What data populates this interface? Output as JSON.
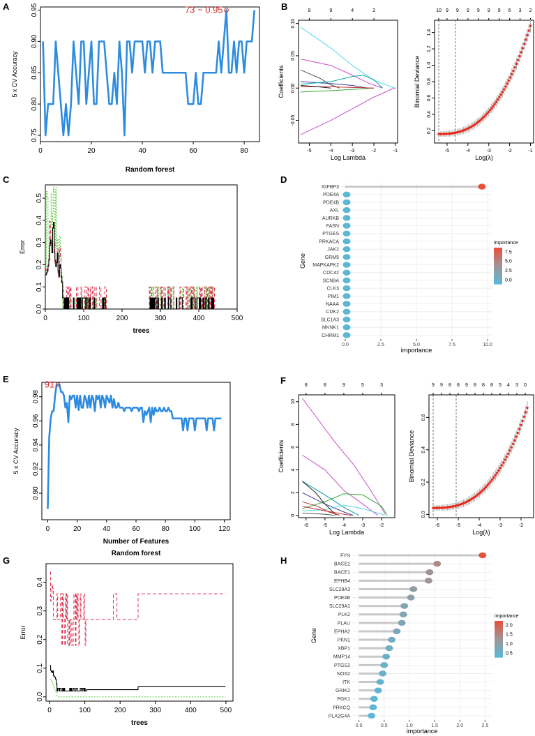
{
  "colors": {
    "rf_line": "#2e8ce0",
    "dev_point": "#e8291c",
    "ci": "#b0b0b0",
    "oob": "#000000",
    "class0": "#dc3250",
    "class1": "#55cc33",
    "lollipop_low": "#5bb7d8",
    "lollipop_high": "#e5513a",
    "grid": "#ebebeb"
  },
  "chart_data": [
    {
      "panel": "A",
      "type": "line",
      "xlabel": "",
      "ylabel": "5 x CV Accuracy",
      "title": "Random forest",
      "xlim": [
        0,
        86
      ],
      "ylim": [
        0.74,
        0.955
      ],
      "xticks": [
        0,
        20,
        40,
        60,
        80
      ],
      "yticks": [
        0.75,
        0.8,
        0.85,
        0.9,
        0.95
      ],
      "ytick_labels": [
        "0.75",
        "0.80",
        "0.85",
        "0.90",
        "0.95"
      ],
      "annotation": "73 − 0.95",
      "annotation_point": [
        73,
        0.95
      ],
      "y": [
        0.9,
        0.75,
        0.8,
        0.8,
        0.8,
        0.9,
        0.85,
        0.8,
        0.75,
        0.8,
        0.75,
        0.8,
        0.9,
        0.85,
        0.8,
        0.9,
        0.9,
        0.8,
        0.85,
        0.9,
        0.8,
        0.8,
        0.9,
        0.9,
        0.9,
        0.85,
        0.8,
        0.8,
        0.85,
        0.8,
        0.9,
        0.85,
        0.75,
        0.9,
        0.9,
        0.85,
        0.9,
        0.9,
        0.9,
        0.9,
        0.85,
        0.9,
        0.9,
        0.85,
        0.9,
        0.9,
        0.9,
        0.85,
        0.85,
        0.85,
        0.85,
        0.85,
        0.85,
        0.85,
        0.85,
        0.85,
        0.85,
        0.8,
        0.8,
        0.8,
        0.85,
        0.8,
        0.8,
        0.85,
        0.85,
        0.85,
        0.85,
        0.85,
        0.85,
        0.9,
        0.85,
        0.9,
        0.95,
        0.85,
        0.85,
        0.9,
        0.85,
        0.9,
        0.9,
        0.85,
        0.9,
        0.9,
        0.9,
        0.95
      ]
    },
    {
      "panel": "B-left",
      "type": "line",
      "xlabel": "Log Lambda",
      "ylabel": "Coefficients",
      "xlim": [
        -5.5,
        -0.9
      ],
      "ylim": [
        -0.085,
        0.105
      ],
      "xticks": [
        -5,
        -4,
        -3,
        -2,
        -1
      ],
      "yticks": [
        -0.05,
        0,
        0.05,
        0.1
      ],
      "ytick_labels": [
        "-0.05",
        "0.00",
        "0.05",
        "0.10"
      ],
      "top_ticks": [
        -5,
        -4,
        -3,
        -2
      ],
      "top_labels": [
        "9",
        "9",
        "4",
        "2"
      ],
      "series": [
        {
          "color": "#58d6e8",
          "points": [
            [
              -5.4,
              0.094
            ],
            [
              -4,
              0.062
            ],
            [
              -3,
              0.035
            ],
            [
              -2,
              0.012
            ],
            [
              -1.2,
              0.002
            ],
            [
              -1,
              0
            ]
          ]
        },
        {
          "color": "#c850c8",
          "points": [
            [
              -5.4,
              -0.072
            ],
            [
              -4,
              -0.05
            ],
            [
              -3,
              -0.032
            ],
            [
              -2,
              -0.014
            ],
            [
              -1.2,
              -0.002
            ],
            [
              -1,
              0
            ]
          ]
        },
        {
          "color": "#c850c8",
          "points": [
            [
              -5.4,
              0.045
            ],
            [
              -4,
              0.035
            ],
            [
              -3,
              0.02
            ],
            [
              -2.2,
              0.007
            ],
            [
              -1.6,
              0
            ]
          ]
        },
        {
          "color": "#555555",
          "points": [
            [
              -5.4,
              0.028
            ],
            [
              -4.5,
              0.015
            ],
            [
              -4,
              0.005
            ],
            [
              -3.6,
              0
            ]
          ]
        },
        {
          "color": "#3a3a9a",
          "points": [
            [
              -5.4,
              0.01
            ],
            [
              -4,
              0.007
            ],
            [
              -3,
              0.004
            ],
            [
              -2.3,
              0
            ]
          ]
        },
        {
          "color": "#00aaaa",
          "points": [
            [
              -5.4,
              0.006
            ],
            [
              -4,
              0.01
            ],
            [
              -3,
              0.018
            ],
            [
              -2.5,
              0.02
            ],
            [
              -2,
              0.013
            ],
            [
              -1.6,
              0
            ]
          ]
        },
        {
          "color": "#33aa33",
          "points": [
            [
              -5.4,
              -0.006
            ],
            [
              -4,
              -0.004
            ],
            [
              -3,
              -0.002
            ],
            [
              -2,
              0
            ]
          ]
        },
        {
          "color": "#c83232",
          "points": [
            [
              -5.4,
              0.002
            ],
            [
              -4,
              0.002
            ],
            [
              -3,
              0.001
            ],
            [
              -2,
              0
            ]
          ]
        },
        {
          "color": "#222222",
          "points": [
            [
              -5.4,
              0.004
            ],
            [
              -4.6,
              0.002
            ],
            [
              -4,
              0
            ]
          ]
        }
      ]
    },
    {
      "panel": "B-right",
      "type": "scatter",
      "xlabel": "Log(λ)",
      "ylabel": "Binomial Deviance",
      "xlim": [
        -5.6,
        -0.85
      ],
      "ylim": [
        0.05,
        1.55
      ],
      "xticks": [
        -5,
        -4,
        -3,
        -2,
        -1
      ],
      "yticks": [
        0.2,
        0.4,
        0.6,
        0.8,
        1.0,
        1.2,
        1.4
      ],
      "ytick_labels": [
        "0.2",
        "0.4",
        "0.6",
        "0.8",
        "1.0",
        "1.2",
        "1.4"
      ],
      "top_ticks": [
        -5.4,
        -5,
        -4.5,
        -4,
        -3.5,
        -3,
        -2.5,
        -2,
        -1.5,
        -1
      ],
      "top_labels": [
        "10",
        "9",
        "9",
        "9",
        "9",
        "9",
        "9",
        "6",
        "3",
        "2"
      ],
      "vlines": [
        -5.4,
        -4.6
      ],
      "curve": {
        "x_start": -5.4,
        "x_end": -1,
        "n": 60,
        "base": 0.16,
        "scale": 1.32,
        "exponent": 2.6
      }
    },
    {
      "panel": "C",
      "type": "line",
      "xlabel": "trees",
      "ylabel": "Error",
      "xlim": [
        0,
        500
      ],
      "ylim": [
        0,
        0.56
      ],
      "xticks": [
        0,
        100,
        200,
        300,
        400,
        500
      ],
      "yticks": [
        0,
        0.1,
        0.2,
        0.3,
        0.4,
        0.5
      ],
      "ytick_labels": [
        "0.0",
        "0.1",
        "0.2",
        "0.3",
        "0.4",
        "0.5"
      ]
    },
    {
      "panel": "D",
      "type": "lollipop",
      "xlabel": "importance",
      "ylabel": "Gene",
      "xlim": [
        0,
        10
      ],
      "xticks": [
        0,
        2.5,
        5,
        7.5,
        10
      ],
      "xtick_labels": [
        "0.0",
        "2.5",
        "5.0",
        "7.5",
        "10.0"
      ],
      "categories": [
        "IGFBP3",
        "PDE4A",
        "PDE4B",
        "AXL",
        "AURKB",
        "FASN",
        "PTGES",
        "PRKACA",
        "JAK2",
        "GRM5",
        "MAPKAPK2",
        "CDC42",
        "SCN9A",
        "CLK3",
        "PIM1",
        "NAAA",
        "CDK2",
        "SLC1A3",
        "MKNK1",
        "CHRM1"
      ],
      "values": [
        9.6,
        0.1,
        0.1,
        0.1,
        0.1,
        0.1,
        0.1,
        0.1,
        0.1,
        0.1,
        0.1,
        0.1,
        0.1,
        0.1,
        0.1,
        0.1,
        0.1,
        0.1,
        0.1,
        0.1
      ],
      "legend": {
        "title": "importance",
        "labels": [
          "7.5",
          "5.0",
          "2.5",
          "0.0"
        ],
        "range": [
          0,
          9.6
        ]
      }
    },
    {
      "panel": "E",
      "type": "line",
      "xlabel": "Number of Features",
      "ylabel": "5 x CV Accuracy",
      "title": "Random forest",
      "xlim": [
        -4,
        124
      ],
      "ylim": [
        0.878,
        0.992
      ],
      "xticks": [
        0,
        20,
        40,
        60,
        80,
        100,
        120
      ],
      "yticks": [
        0.9,
        0.92,
        0.94,
        0.96,
        0.98
      ],
      "ytick_labels": [
        "0.90",
        "0.92",
        "0.94",
        "0.96",
        "0.98"
      ],
      "annotation": "91",
      "annotation_point": [
        7,
        0.99
      ],
      "y": [
        0.887,
        0.946,
        0.962,
        0.968,
        0.968,
        0.981,
        0.99,
        0.99,
        0.99,
        0.984,
        0.984,
        0.981,
        0.971,
        0.975,
        0.959,
        0.981,
        0.978,
        0.981,
        0.981,
        0.971,
        0.981,
        0.969,
        0.981,
        0.971,
        0.971,
        0.981,
        0.978,
        0.971,
        0.981,
        0.971,
        0.981,
        0.978,
        0.968,
        0.981,
        0.978,
        0.981,
        0.971,
        0.981,
        0.978,
        0.971,
        0.981,
        0.978,
        0.975,
        0.981,
        0.971,
        0.978,
        0.971,
        0.971,
        0.975,
        0.971,
        0.971,
        0.971,
        0.968,
        0.971,
        0.971,
        0.971,
        0.971,
        0.968,
        0.971,
        0.971,
        0.971,
        0.971,
        0.968,
        0.971,
        0.971,
        0.959,
        0.968,
        0.965,
        0.968,
        0.971,
        0.959,
        0.971,
        0.965,
        0.971,
        0.968,
        0.968,
        0.971,
        0.968,
        0.968,
        0.971,
        0.968,
        0.968,
        0.971,
        0.968,
        0.968,
        0.962,
        0.962,
        0.962,
        0.962,
        0.962,
        0.962,
        0.962,
        0.952,
        0.962,
        0.962,
        0.952,
        0.962,
        0.962,
        0.962,
        0.962,
        0.952,
        0.962,
        0.962,
        0.962,
        0.962,
        0.962,
        0.962,
        0.962,
        0.952,
        0.962,
        0.962,
        0.962,
        0.962,
        0.952,
        0.962,
        0.962,
        0.962,
        0.962,
        0.962
      ]
    },
    {
      "panel": "F-left",
      "type": "line",
      "xlabel": "Log Lambda",
      "ylabel": "Coefficients",
      "xlim": [
        -6.4,
        -1.3
      ],
      "ylim": [
        -0.2,
        10.6
      ],
      "xticks": [
        -6,
        -5,
        -4,
        -3,
        -2
      ],
      "yticks": [
        0,
        2,
        4,
        6,
        8,
        10
      ],
      "top_ticks": [
        -6,
        -5,
        -4,
        -3,
        -2
      ],
      "top_labels": [
        "8",
        "8",
        "9",
        "5",
        "3"
      ],
      "series": [
        {
          "color": "#c850c8",
          "points": [
            [
              -6.2,
              10.3
            ],
            [
              -4.5,
              6.5
            ],
            [
              -3.5,
              4.5
            ],
            [
              -2.5,
              2
            ],
            [
              -1.8,
              0.1
            ]
          ]
        },
        {
          "color": "#c850c8",
          "points": [
            [
              -6.2,
              5.3
            ],
            [
              -5,
              4
            ],
            [
              -4,
              2.2
            ],
            [
              -3,
              1
            ],
            [
              -2.2,
              0
            ]
          ]
        },
        {
          "color": "#00a0a0",
          "points": [
            [
              -6.2,
              3
            ],
            [
              -5,
              1.8
            ],
            [
              -4,
              0.7
            ],
            [
              -3.2,
              0
            ]
          ]
        },
        {
          "color": "#33aa33",
          "points": [
            [
              -6.2,
              0.6
            ],
            [
              -5,
              1.2
            ],
            [
              -4,
              1.9
            ],
            [
              -3,
              1.8
            ],
            [
              -2,
              0.8
            ],
            [
              -1.7,
              0
            ]
          ]
        },
        {
          "color": "#3a3a9a",
          "points": [
            [
              -6.2,
              2
            ],
            [
              -5,
              1
            ],
            [
              -4,
              0.3
            ],
            [
              -3.5,
              0
            ]
          ]
        },
        {
          "color": "#58d6e8",
          "points": [
            [
              -6.2,
              0.4
            ],
            [
              -5,
              0.5
            ],
            [
              -4,
              0.9
            ],
            [
              -3,
              0.6
            ],
            [
              -2,
              0.1
            ],
            [
              -1.8,
              0
            ]
          ]
        },
        {
          "color": "#c83232",
          "points": [
            [
              -6.2,
              0.8
            ],
            [
              -5,
              0.4
            ],
            [
              -4,
              0.1
            ],
            [
              -3.6,
              0
            ]
          ]
        },
        {
          "color": "#222222",
          "points": [
            [
              -6.2,
              3
            ],
            [
              -5.5,
              2
            ],
            [
              -5,
              1
            ],
            [
              -4.4,
              0
            ]
          ]
        },
        {
          "color": "#555555",
          "points": [
            [
              -6.2,
              0.2
            ],
            [
              -5,
              0.1
            ],
            [
              -4.5,
              0
            ]
          ]
        },
        {
          "color": "#aa3333",
          "points": [
            [
              -6.2,
              1.2
            ],
            [
              -5.4,
              0.8
            ],
            [
              -4.8,
              0.3
            ],
            [
              -4.2,
              0
            ]
          ]
        }
      ]
    },
    {
      "panel": "F-right",
      "type": "scatter",
      "xlabel": "Log(λ)",
      "ylabel": "Binomial Deviance",
      "xlim": [
        -6.4,
        -1.4
      ],
      "ylim": [
        -0.02,
        0.74
      ],
      "xticks": [
        -6,
        -5,
        -4,
        -3,
        -2
      ],
      "yticks": [
        0,
        0.2,
        0.4,
        0.6
      ],
      "ytick_labels": [
        "0.0",
        "0.2",
        "0.4",
        "0.6"
      ],
      "top_ticks": [
        -6.2,
        -5.8,
        -5.4,
        -5,
        -4.6,
        -4.2,
        -3.8,
        -3.4,
        -3,
        -2.6,
        -2.2,
        -1.8
      ],
      "top_labels": [
        "9",
        "9",
        "8",
        "8",
        "9",
        "8",
        "8",
        "8",
        "5",
        "4",
        "3",
        "0"
      ],
      "vlines": [
        -6.2,
        -5.1
      ],
      "curve": {
        "x_start": -6.2,
        "x_end": -1.7,
        "n": 60,
        "base": 0.04,
        "scale": 0.62,
        "exponent": 2.7
      }
    },
    {
      "panel": "G",
      "type": "line",
      "xlabel": "trees",
      "ylabel": "Error",
      "xlim": [
        -10,
        520
      ],
      "ylim": [
        -0.015,
        0.465
      ],
      "xticks": [
        0,
        100,
        200,
        300,
        400,
        500
      ],
      "yticks": [
        0,
        0.1,
        0.2,
        0.3,
        0.4
      ],
      "ytick_labels": [
        "0.0",
        "0.1",
        "0.2",
        "0.3",
        "0.4"
      ]
    },
    {
      "panel": "H",
      "type": "lollipop",
      "xlabel": "importance",
      "ylabel": "Gene",
      "xlim": [
        -0.05,
        2.55
      ],
      "xticks": [
        0,
        0.5,
        1,
        1.5,
        2,
        2.5
      ],
      "xtick_labels": [
        "0.0",
        "0.5",
        "1.0",
        "1.5",
        "2.0",
        "2.5"
      ],
      "categories": [
        "FYN",
        "BACE2",
        "BACE1",
        "EPHB4",
        "SLC28A3",
        "PDE4B",
        "SLC29A1",
        "PLK2",
        "PLAU",
        "EPHA2",
        "PKN1",
        "XBP1",
        "MMP14",
        "PTGS2",
        "NOS2",
        "ITK",
        "GRIK2",
        "PGK1",
        "PRKCQ",
        "PLA2G4A"
      ],
      "values": [
        2.45,
        1.55,
        1.4,
        1.38,
        1.08,
        1.03,
        0.9,
        0.88,
        0.85,
        0.75,
        0.65,
        0.6,
        0.54,
        0.5,
        0.47,
        0.42,
        0.38,
        0.3,
        0.28,
        0.25
      ],
      "legend": {
        "title": "importance",
        "labels": [
          "2.0",
          "1.5",
          "1.0",
          "0.5"
        ],
        "range": [
          0.25,
          2.45
        ]
      }
    }
  ]
}
